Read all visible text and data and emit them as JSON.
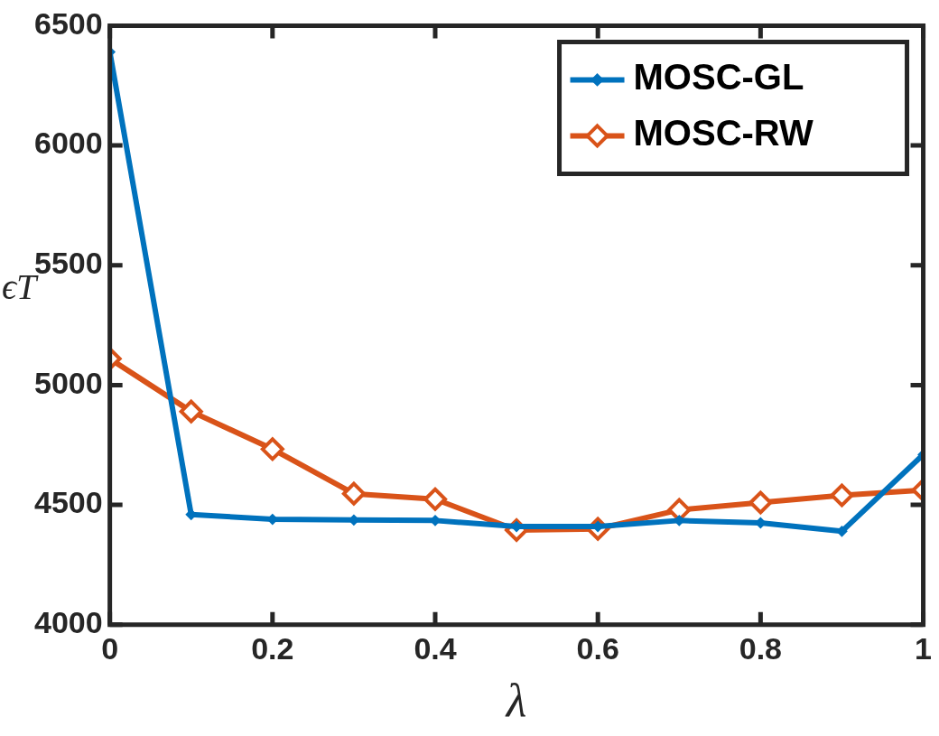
{
  "chart_data": {
    "type": "line",
    "xlabel": "λ",
    "ylabel": "ϵT",
    "x": [
      0,
      0.1,
      0.2,
      0.3,
      0.4,
      0.5,
      0.6,
      0.7,
      0.8,
      0.9,
      1
    ],
    "series": [
      {
        "name": "MOSC-GL",
        "color": "#0072bd",
        "values": [
          6390,
          4460,
          4440,
          4437,
          4435,
          4410,
          4410,
          4435,
          4425,
          4390,
          4710
        ]
      },
      {
        "name": "MOSC-RW",
        "color": "#d95319",
        "values": [
          5110,
          4890,
          4733,
          4547,
          4524,
          4395,
          4400,
          4479,
          4510,
          4540,
          4562
        ]
      }
    ],
    "xlim": [
      0,
      1
    ],
    "xticks": [
      0,
      0.2,
      0.4,
      0.6,
      0.8,
      1
    ],
    "ylim": [
      4000,
      6500
    ],
    "yticks": [
      4000,
      4500,
      5000,
      5500,
      6000,
      6500
    ],
    "grid": false,
    "legend": "top right",
    "marker": "diamond",
    "line_style": "solid"
  }
}
